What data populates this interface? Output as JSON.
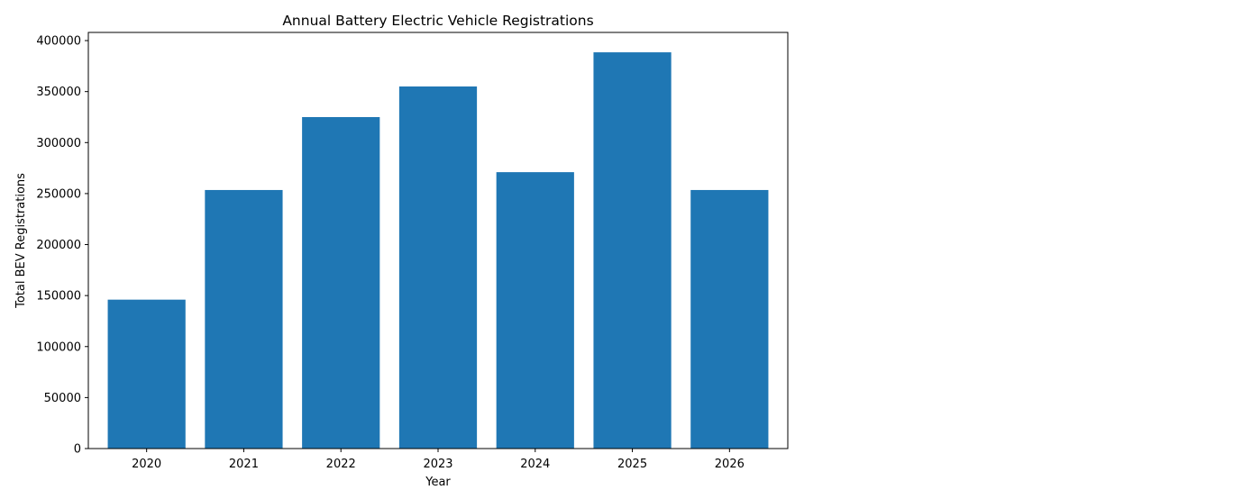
{
  "chart_data": {
    "type": "bar",
    "title": "Annual Battery Electric Vehicle Registrations",
    "xlabel": "Year",
    "ylabel": "Total BEV Registrations",
    "categories": [
      "2020",
      "2021",
      "2022",
      "2023",
      "2024",
      "2025",
      "2026"
    ],
    "values": [
      146000,
      253500,
      325000,
      355000,
      271000,
      388500,
      253500
    ],
    "ylim": [
      0,
      408000
    ],
    "yticks": [
      0,
      50000,
      100000,
      150000,
      200000,
      250000,
      300000,
      350000,
      400000
    ],
    "grid": false,
    "bar_color": "#1f77b4"
  }
}
